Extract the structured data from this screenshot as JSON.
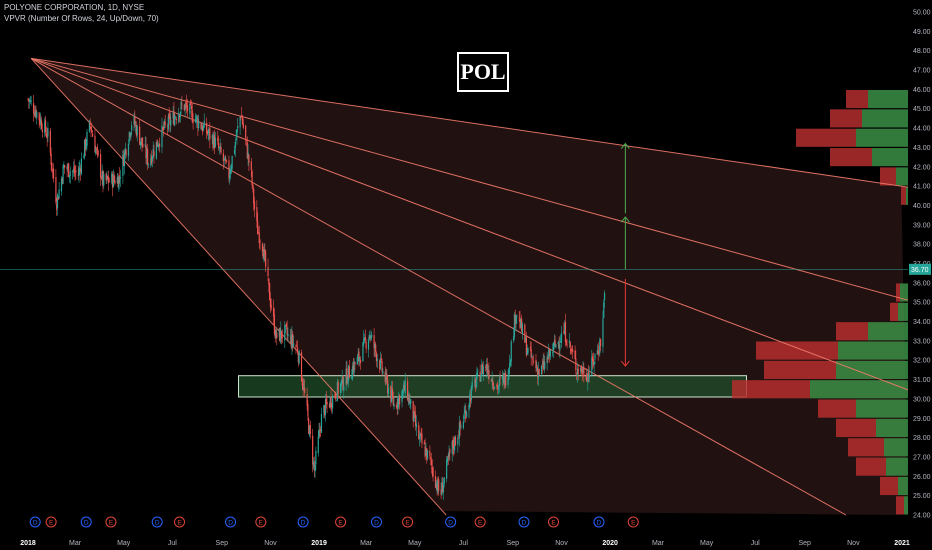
{
  "header": {
    "symbol_line": "POLYONE CORPORATION, 1D, NYSE",
    "indicator_line": "VPVR (Number Of Rows, 24, Up/Down, 70)"
  },
  "ticker_label": "POL",
  "colors": {
    "background": "#000000",
    "up": "#26a69a",
    "down": "#ef5350",
    "fan_line": "#f07a6a",
    "price_line": "#26a69a",
    "zone_fill": "#1f4d2a",
    "vp_up": "#3b8f45",
    "vp_down": "#b52e2e",
    "arrow_up": "#4caf50",
    "arrow_down": "#e53935"
  },
  "chart_data": {
    "type": "candlestick",
    "y_axis": {
      "min": 24,
      "max": 50,
      "ticks": [
        "50.00",
        "49.00",
        "48.00",
        "47.00",
        "46.00",
        "45.00",
        "44.00",
        "43.00",
        "42.00",
        "41.00",
        "40.00",
        "39.00",
        "38.00",
        "37.00",
        "36.00",
        "35.00",
        "34.00",
        "33.00",
        "32.00",
        "31.00",
        "30.00",
        "29.00",
        "28.00",
        "27.00",
        "26.00",
        "25.00",
        "24.00"
      ]
    },
    "x_axis": {
      "labels": [
        "2018",
        "Mar",
        "May",
        "Jul",
        "Sep",
        "Nov",
        "2019",
        "Mar",
        "May",
        "Jul",
        "Sep",
        "Nov",
        "2020",
        "Mar",
        "May",
        "Jul",
        "Sep",
        "Nov",
        "2021"
      ],
      "bold_labels": [
        "2018",
        "2019",
        "2020",
        "2021"
      ]
    },
    "current_price": {
      "label": "36.70",
      "value": 36.7
    },
    "price_path": [
      [
        "2018-01-01",
        45.5
      ],
      [
        "2018-01-12",
        44.8
      ],
      [
        "2018-01-26",
        43.6
      ],
      [
        "2018-02-06",
        40.2
      ],
      [
        "2018-02-15",
        42.0
      ],
      [
        "2018-03-05",
        41.6
      ],
      [
        "2018-03-20",
        44.2
      ],
      [
        "2018-04-05",
        41.2
      ],
      [
        "2018-04-25",
        41.4
      ],
      [
        "2018-05-12",
        44.5
      ],
      [
        "2018-06-01",
        42.3
      ],
      [
        "2018-06-20",
        43.9
      ],
      [
        "2018-07-15",
        45.2
      ],
      [
        "2018-08-05",
        44.2
      ],
      [
        "2018-08-25",
        43.2
      ],
      [
        "2018-09-10",
        41.6
      ],
      [
        "2018-09-25",
        44.8
      ],
      [
        "2018-10-08",
        41.5
      ],
      [
        "2018-10-14",
        39.0
      ],
      [
        "2018-10-22",
        38.0
      ],
      [
        "2018-10-30",
        35.6
      ],
      [
        "2018-11-08",
        33.2
      ],
      [
        "2018-11-20",
        33.4
      ],
      [
        "2018-12-05",
        32.6
      ],
      [
        "2018-12-15",
        29.9
      ],
      [
        "2018-12-26",
        26.3
      ],
      [
        "2019-01-05",
        29.3
      ],
      [
        "2019-01-20",
        30.2
      ],
      [
        "2019-02-05",
        31.2
      ],
      [
        "2019-02-20",
        32.1
      ],
      [
        "2019-03-05",
        33.4
      ],
      [
        "2019-03-20",
        31.6
      ],
      [
        "2019-04-05",
        29.7
      ],
      [
        "2019-04-20",
        30.6
      ],
      [
        "2019-05-05",
        28.1
      ],
      [
        "2019-05-20",
        26.8
      ],
      [
        "2019-06-02",
        25.0
      ],
      [
        "2019-06-15",
        27.3
      ],
      [
        "2019-06-28",
        28.6
      ],
      [
        "2019-07-12",
        30.5
      ],
      [
        "2019-07-28",
        31.8
      ],
      [
        "2019-08-12",
        30.6
      ],
      [
        "2019-08-25",
        31.2
      ],
      [
        "2019-09-05",
        34.6
      ],
      [
        "2019-09-20",
        32.4
      ],
      [
        "2019-10-05",
        31.3
      ],
      [
        "2019-10-20",
        32.5
      ],
      [
        "2019-11-05",
        33.5
      ],
      [
        "2019-11-20",
        31.6
      ],
      [
        "2019-12-05",
        31.3
      ],
      [
        "2019-12-15",
        32.4
      ],
      [
        "2019-12-22",
        33.2
      ],
      [
        "2019-12-26",
        36.7
      ]
    ],
    "fan_lines": [
      {
        "from": [
          "2018-01-05",
          47.6
        ],
        "to": [
          "2020-12-31",
          41.0
        ]
      },
      {
        "from": [
          "2018-01-05",
          47.6
        ],
        "to": [
          "2020-12-31",
          35.2
        ]
      },
      {
        "from": [
          "2018-01-05",
          47.6
        ],
        "to": [
          "2020-12-31",
          30.6
        ]
      },
      {
        "from": [
          "2018-01-05",
          47.6
        ],
        "to": [
          "2020-12-31",
          22.4
        ]
      },
      {
        "from": [
          "2018-01-05",
          47.6
        ],
        "to": [
          "2019-06-05",
          24.2
        ]
      }
    ],
    "support_zone": {
      "from": "2018-09-22",
      "to": "2020-06-20",
      "low": 30.1,
      "high": 31.2
    },
    "arrows": [
      {
        "kind": "up",
        "date": "2019-12-26",
        "from": 39.6,
        "to": 43.2
      },
      {
        "kind": "up",
        "date": "2019-12-26",
        "from": 36.7,
        "to": 39.4
      },
      {
        "kind": "down",
        "date": "2019-12-26",
        "from": 36.2,
        "to": 31.7
      }
    ],
    "volume_profile": [
      {
        "low": 45.0,
        "high": 46.0,
        "up": 40,
        "down": 22
      },
      {
        "low": 44.0,
        "high": 45.0,
        "up": 46,
        "down": 32
      },
      {
        "low": 43.0,
        "high": 44.0,
        "up": 52,
        "down": 60
      },
      {
        "low": 42.0,
        "high": 43.0,
        "up": 36,
        "down": 42
      },
      {
        "low": 41.0,
        "high": 42.0,
        "up": 12,
        "down": 16
      },
      {
        "low": 40.0,
        "high": 41.0,
        "up": 2,
        "down": 5
      },
      {
        "low": 35.0,
        "high": 36.0,
        "up": 8,
        "down": 4
      },
      {
        "low": 34.0,
        "high": 35.0,
        "up": 10,
        "down": 8
      },
      {
        "low": 33.0,
        "high": 34.0,
        "up": 40,
        "down": 32
      },
      {
        "low": 32.0,
        "high": 33.0,
        "up": 70,
        "down": 82
      },
      {
        "low": 31.0,
        "high": 32.0,
        "up": 72,
        "down": 72
      },
      {
        "low": 30.0,
        "high": 31.0,
        "up": 98,
        "down": 78
      },
      {
        "low": 29.0,
        "high": 30.0,
        "up": 52,
        "down": 38
      },
      {
        "low": 28.0,
        "high": 29.0,
        "up": 32,
        "down": 40
      },
      {
        "low": 27.0,
        "high": 28.0,
        "up": 24,
        "down": 36
      },
      {
        "low": 26.0,
        "high": 27.0,
        "up": 22,
        "down": 30
      },
      {
        "low": 25.0,
        "high": 26.0,
        "up": 10,
        "down": 18
      },
      {
        "low": 24.0,
        "high": 25.0,
        "up": 4,
        "down": 8
      }
    ],
    "events": [
      {
        "type": "D",
        "date": "2018-01-10"
      },
      {
        "type": "E",
        "date": "2018-01-30"
      },
      {
        "type": "D",
        "date": "2018-03-15"
      },
      {
        "type": "E",
        "date": "2018-04-15"
      },
      {
        "type": "D",
        "date": "2018-06-12"
      },
      {
        "type": "E",
        "date": "2018-07-10"
      },
      {
        "type": "D",
        "date": "2018-09-12"
      },
      {
        "type": "E",
        "date": "2018-10-20"
      },
      {
        "type": "D",
        "date": "2018-12-12"
      },
      {
        "type": "E",
        "date": "2019-01-28"
      },
      {
        "type": "D",
        "date": "2019-03-14"
      },
      {
        "type": "E",
        "date": "2019-04-22"
      },
      {
        "type": "D",
        "date": "2019-06-15"
      },
      {
        "type": "E",
        "date": "2019-07-22"
      },
      {
        "type": "D",
        "date": "2019-09-15"
      },
      {
        "type": "E",
        "date": "2019-10-22"
      },
      {
        "type": "D",
        "date": "2019-12-18"
      },
      {
        "type": "E",
        "date": "2020-01-30"
      }
    ]
  }
}
